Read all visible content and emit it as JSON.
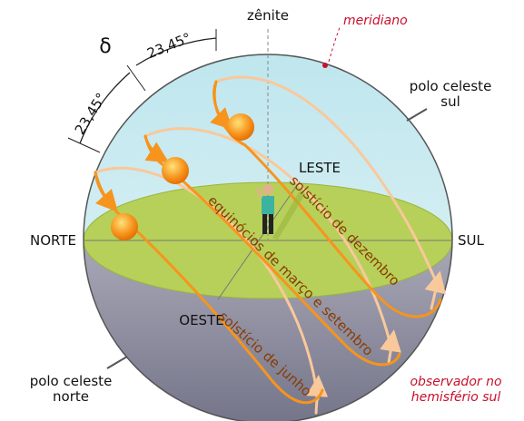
{
  "labels": {
    "zenith": "zênite",
    "meridian": "meridiano",
    "delta": "δ",
    "angle_1": "23,45°",
    "angle_2": "23,45°",
    "south_pole": [
      "polo celeste",
      "sul"
    ],
    "north_pole": [
      "polo celeste",
      "norte"
    ],
    "east": "LESTE",
    "west": "OESTE",
    "north": "NORTE",
    "south": "SUL",
    "observer": [
      "observador no",
      "hemisfério sul"
    ]
  },
  "paths": {
    "december_solstice": "solstício de dezembro",
    "equinoxes": "equinócios de março e setembro",
    "june_solstice": "solstício de junho"
  }
}
